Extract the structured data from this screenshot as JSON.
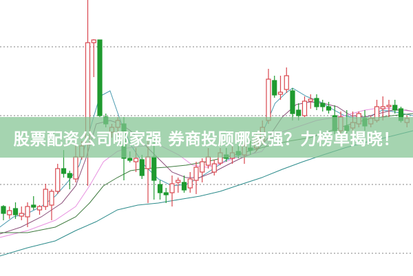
{
  "banner": {
    "text": "股票配资公司哪家强 券商投顾哪家强？力榜单揭晓！"
  },
  "chart_data": {
    "type": "candlestick",
    "title": "",
    "xlabel": "",
    "ylabel": "",
    "ylim": [
      0,
      40
    ],
    "grid": true,
    "grid_style": "dotted-horizontal",
    "grid_levels": [
      33.2,
      23.2,
      13.2,
      3.2
    ],
    "colors": {
      "up": "#d9464e",
      "down": "#1f9a2f",
      "ma5": "#4a9ab0",
      "ma10": "#8b4f7a",
      "ma20": "#e890e0",
      "ma30": "#3e7a3e",
      "ma60": "#2a8a8a",
      "grid": "#999999"
    },
    "candles_ohlc": [
      [
        10.0,
        10.2,
        8.0,
        9.0
      ],
      [
        8.8,
        10.0,
        8.2,
        9.4
      ],
      [
        9.7,
        10.6,
        8.2,
        8.8
      ],
      [
        8.6,
        10.0,
        8.0,
        9.0
      ],
      [
        8.5,
        10.6,
        7.0,
        10.0
      ],
      [
        10.2,
        11.5,
        9.5,
        9.9
      ],
      [
        9.5,
        10.2,
        8.8,
        10.0
      ],
      [
        10.0,
        13.3,
        9.5,
        12.5
      ],
      [
        10.2,
        12.5,
        8.0,
        12.2
      ],
      [
        12.2,
        16.2,
        11.8,
        15.5
      ],
      [
        15.5,
        18.2,
        14.2,
        14.8
      ],
      [
        14.8,
        15.2,
        12.5,
        14.2
      ],
      [
        14.0,
        19.0,
        13.5,
        17.2
      ],
      [
        17.2,
        19.5,
        16.8,
        18.8
      ],
      [
        19.0,
        40.0,
        13.0,
        33.8
      ],
      [
        33.8,
        34.3,
        28.8,
        34.2
      ],
      [
        34.2,
        34.2,
        23.0,
        23.2
      ],
      [
        23.0,
        23.5,
        21.5,
        22.0
      ],
      [
        20.8,
        22.0,
        20.0,
        21.5
      ],
      [
        21.5,
        23.0,
        20.5,
        22.5
      ],
      [
        22.0,
        23.0,
        13.8,
        17.0
      ],
      [
        17.0,
        18.0,
        16.4,
        16.7
      ],
      [
        16.5,
        18.5,
        15.0,
        17.0
      ],
      [
        16.8,
        17.5,
        14.0,
        14.5
      ],
      [
        15.5,
        19.5,
        10.5,
        17.2
      ],
      [
        17.2,
        20.0,
        11.0,
        13.8
      ],
      [
        13.2,
        13.8,
        11.0,
        12.0
      ],
      [
        12.0,
        12.7,
        10.5,
        11.7
      ],
      [
        12.0,
        14.5,
        10.0,
        13.3
      ],
      [
        13.5,
        14.2,
        12.0,
        13.8
      ],
      [
        13.5,
        14.5,
        12.0,
        12.4
      ],
      [
        12.7,
        15.0,
        12.0,
        14.0
      ],
      [
        13.8,
        16.5,
        11.8,
        15.7
      ],
      [
        15.0,
        17.0,
        13.5,
        16.5
      ],
      [
        16.0,
        18.5,
        15.5,
        17.2
      ],
      [
        15.0,
        16.8,
        14.5,
        16.2
      ],
      [
        16.3,
        18.5,
        16.0,
        17.8
      ],
      [
        17.5,
        18.5,
        16.5,
        17.0
      ],
      [
        17.0,
        18.8,
        16.2,
        17.8
      ],
      [
        18.0,
        19.0,
        17.0,
        17.5
      ],
      [
        17.5,
        19.5,
        16.2,
        18.8
      ],
      [
        18.5,
        19.5,
        17.5,
        18.2
      ],
      [
        18.5,
        20.5,
        18.0,
        19.5
      ],
      [
        19.5,
        22.5,
        19.0,
        21.5
      ],
      [
        22.5,
        30.0,
        22.0,
        28.5
      ],
      [
        28.3,
        29.0,
        25.8,
        26.2
      ],
      [
        26.3,
        29.0,
        25.5,
        26.6
      ],
      [
        27.0,
        30.2,
        26.5,
        29.0
      ],
      [
        26.8,
        27.2,
        22.5,
        23.5
      ],
      [
        24.0,
        25.0,
        22.5,
        23.2
      ],
      [
        23.2,
        26.0,
        23.0,
        25.3
      ],
      [
        25.3,
        26.3,
        24.2,
        25.6
      ],
      [
        25.7,
        26.3,
        24.0,
        24.5
      ],
      [
        25.0,
        25.5,
        23.8,
        24.5
      ],
      [
        24.5,
        25.2,
        23.5,
        24.0
      ],
      [
        23.2,
        24.7,
        20.5,
        21.0
      ],
      [
        21.0,
        23.8,
        20.5,
        23.0
      ],
      [
        21.7,
        24.0,
        20.5,
        21.0
      ],
      [
        21.4,
        23.8,
        20.5,
        22.2
      ],
      [
        22.0,
        23.8,
        21.5,
        23.5
      ],
      [
        22.8,
        24.0,
        21.0,
        21.7
      ],
      [
        22.0,
        23.2,
        21.5,
        22.8
      ],
      [
        22.5,
        25.5,
        22.2,
        24.5
      ],
      [
        24.2,
        26.0,
        22.5,
        24.5
      ],
      [
        24.5,
        25.5,
        23.0,
        24.7
      ],
      [
        24.7,
        25.5,
        23.5,
        24.0
      ],
      [
        24.2,
        24.5,
        22.2,
        22.5
      ],
      [
        22.2,
        23.2,
        21.5,
        22.8
      ]
    ],
    "moving_averages": [
      {
        "key": "ma5",
        "points": [
          [
            -0.6,
            7.0
          ],
          [
            1.7,
            8.5
          ],
          [
            4.0,
            9.0
          ],
          [
            6.3,
            10.0
          ],
          [
            8.6,
            11.5
          ],
          [
            10.9,
            13.8
          ],
          [
            12.6,
            16.0
          ],
          [
            14.3,
            21.0
          ],
          [
            16.0,
            26.0
          ],
          [
            17.7,
            26.8
          ],
          [
            19.4,
            22.5
          ],
          [
            21.1,
            19.0
          ],
          [
            23.4,
            16.0
          ],
          [
            25.7,
            14.0
          ],
          [
            28.0,
            13.0
          ],
          [
            30.3,
            13.2
          ],
          [
            32.6,
            14.2
          ],
          [
            34.9,
            15.5
          ],
          [
            37.1,
            16.8
          ],
          [
            39.4,
            17.5
          ],
          [
            41.7,
            18.5
          ],
          [
            43.4,
            21.5
          ],
          [
            45.1,
            25.0
          ],
          [
            46.9,
            26.5
          ],
          [
            48.0,
            27.2
          ],
          [
            50.3,
            26.0
          ],
          [
            52.6,
            25.2
          ],
          [
            54.9,
            24.0
          ],
          [
            56.6,
            23.2
          ],
          [
            58.9,
            22.8
          ],
          [
            61.1,
            23.2
          ],
          [
            62.9,
            24.0
          ],
          [
            64.6,
            23.8
          ],
          [
            66.3,
            23.5
          ],
          [
            68.0,
            23.2
          ]
        ]
      },
      {
        "key": "ma10",
        "points": [
          [
            -0.6,
            6.0
          ],
          [
            2.9,
            7.0
          ],
          [
            6.3,
            8.5
          ],
          [
            9.7,
            10.5
          ],
          [
            12.0,
            13.0
          ],
          [
            13.7,
            17.0
          ],
          [
            15.4,
            22.0
          ],
          [
            17.7,
            22.5
          ],
          [
            19.4,
            22.0
          ],
          [
            21.1,
            21.0
          ],
          [
            23.4,
            19.0
          ],
          [
            25.7,
            17.0
          ],
          [
            28.0,
            15.0
          ],
          [
            30.3,
            14.2
          ],
          [
            32.6,
            14.2
          ],
          [
            34.9,
            15.0
          ],
          [
            37.1,
            16.0
          ],
          [
            39.4,
            17.0
          ],
          [
            41.7,
            17.8
          ],
          [
            44.0,
            20.0
          ],
          [
            46.3,
            23.0
          ],
          [
            48.6,
            24.8
          ],
          [
            50.9,
            25.2
          ],
          [
            53.1,
            25.0
          ],
          [
            55.4,
            24.5
          ],
          [
            57.7,
            23.2
          ],
          [
            60.0,
            23.0
          ],
          [
            62.3,
            23.5
          ],
          [
            64.6,
            24.0
          ],
          [
            66.9,
            24.0
          ],
          [
            68.0,
            23.8
          ]
        ]
      },
      {
        "key": "ma20",
        "points": [
          [
            -0.6,
            5.5
          ],
          [
            4.0,
            6.5
          ],
          [
            8.6,
            8.0
          ],
          [
            12.0,
            10.0
          ],
          [
            14.3,
            13.0
          ],
          [
            16.6,
            16.5
          ],
          [
            18.9,
            18.0
          ],
          [
            20.6,
            18.5
          ],
          [
            22.3,
            18.7
          ],
          [
            25.7,
            19.0
          ],
          [
            29.1,
            17.5
          ],
          [
            31.4,
            16.0
          ],
          [
            33.7,
            15.7
          ],
          [
            36.0,
            16.2
          ],
          [
            38.3,
            17.0
          ],
          [
            40.6,
            17.5
          ],
          [
            42.9,
            18.0
          ],
          [
            45.1,
            20.5
          ],
          [
            48.6,
            21.5
          ],
          [
            52.0,
            22.5
          ],
          [
            56.6,
            23.2
          ],
          [
            60.0,
            24.0
          ],
          [
            62.3,
            24.3
          ],
          [
            64.6,
            24.2
          ],
          [
            68.0,
            23.8
          ]
        ]
      },
      {
        "key": "ma30",
        "points": [
          [
            -0.6,
            6.2
          ],
          [
            4.0,
            6.2
          ],
          [
            8.6,
            7.0
          ],
          [
            12.0,
            8.5
          ],
          [
            14.3,
            10.5
          ],
          [
            16.6,
            13.0
          ],
          [
            18.9,
            14.2
          ],
          [
            21.1,
            15.2
          ],
          [
            23.4,
            15.5
          ],
          [
            26.9,
            15.7
          ],
          [
            30.3,
            16.0
          ],
          [
            33.7,
            16.5
          ],
          [
            37.1,
            17.2
          ],
          [
            40.6,
            18.0
          ],
          [
            44.0,
            18.8
          ],
          [
            47.4,
            19.5
          ],
          [
            50.9,
            20.0
          ],
          [
            54.3,
            21.0
          ],
          [
            57.7,
            22.0
          ],
          [
            61.1,
            22.8
          ],
          [
            64.6,
            23.2
          ],
          [
            68.0,
            23.5
          ]
        ]
      },
      {
        "key": "ma60",
        "points": [
          [
            -0.6,
            2.8
          ],
          [
            4.0,
            4.0
          ],
          [
            8.6,
            5.0
          ],
          [
            12.0,
            6.5
          ],
          [
            15.4,
            7.8
          ],
          [
            18.9,
            9.5
          ],
          [
            22.3,
            10.2
          ],
          [
            25.7,
            10.5
          ],
          [
            29.1,
            11.0
          ],
          [
            32.6,
            11.5
          ],
          [
            36.0,
            12.2
          ],
          [
            39.4,
            13.2
          ],
          [
            42.9,
            14.2
          ],
          [
            46.3,
            15.4
          ],
          [
            49.7,
            16.5
          ],
          [
            53.1,
            17.5
          ],
          [
            56.6,
            18.5
          ],
          [
            60.0,
            19.3
          ],
          [
            63.4,
            20.0
          ],
          [
            68.0,
            21.0
          ]
        ]
      }
    ]
  }
}
